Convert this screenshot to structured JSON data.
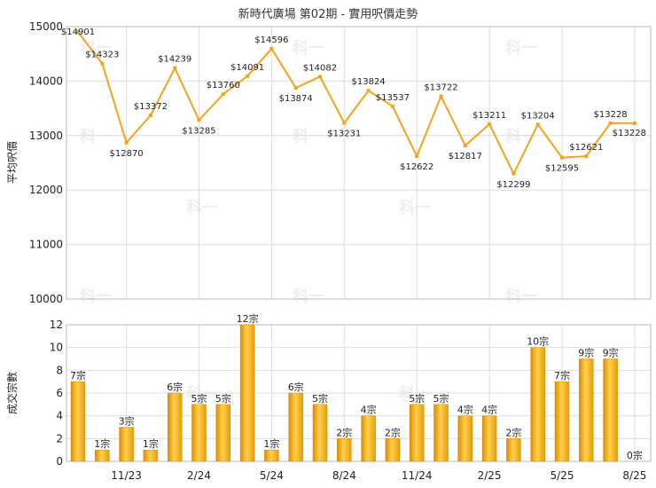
{
  "chart_data": [
    {
      "type": "line",
      "title": "新時代廣場 第02期 - 實用呎價走勢",
      "ylabel": "平均呎價",
      "ylim": [
        10000,
        15000
      ],
      "yticks": [
        10000,
        11000,
        12000,
        13000,
        14000,
        15000
      ],
      "x_tick_labels": [
        "11/23",
        "2/24",
        "5/24",
        "8/24",
        "11/24",
        "2/25",
        "5/25",
        "8/25"
      ],
      "value_prefix": "$",
      "color": "#f5a31a",
      "values": [
        14901,
        14323,
        12870,
        13372,
        14239,
        13285,
        13760,
        14091,
        14596,
        13874,
        14082,
        13231,
        13824,
        13537,
        12622,
        13722,
        12817,
        13211,
        12299,
        13204,
        12595,
        12621,
        13228,
        13228
      ]
    },
    {
      "type": "bar",
      "ylabel": "成交宗數",
      "ylim": [
        0,
        12
      ],
      "yticks": [
        0,
        2,
        4,
        6,
        8,
        10,
        12
      ],
      "x_tick_labels": [
        "11/23",
        "2/24",
        "5/24",
        "8/24",
        "11/24",
        "2/25",
        "5/25",
        "8/25"
      ],
      "unit": "宗",
      "color": "#f5a31a",
      "values": [
        7,
        1,
        3,
        1,
        6,
        5,
        5,
        12,
        1,
        6,
        5,
        2,
        4,
        2,
        5,
        5,
        4,
        4,
        2,
        10,
        7,
        9,
        9,
        0
      ]
    }
  ],
  "watermark": "科一"
}
